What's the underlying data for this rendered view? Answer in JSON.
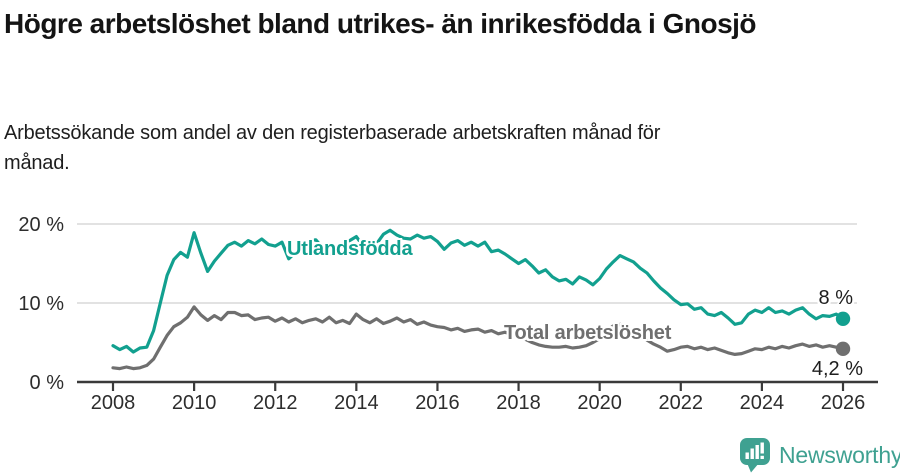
{
  "header": {
    "title": "Högre arbetslöshet bland utrikes- än inrikesfödda i Gnosjö",
    "subtitle": "Arbetssökande som andel av den registerbaserade arbetskraften månad för månad."
  },
  "colors": {
    "accent_teal": "#12A08F",
    "series_gray": "#6F6F6F",
    "grid": "#D9D9D9",
    "axis": "#3A3A3A",
    "text": "#1E1E1E",
    "brand_teal": "#3FA191"
  },
  "chart_data": {
    "type": "line",
    "unit": "%",
    "x_start": 2008,
    "x_step_months": 2,
    "x_ticks": [
      2008,
      2010,
      2012,
      2014,
      2016,
      2018,
      2020,
      2022,
      2024,
      2026
    ],
    "y_ticks": [
      {
        "value": 0,
        "label": "0 %"
      },
      {
        "value": 10,
        "label": "10 %"
      },
      {
        "value": 20,
        "label": "20 %"
      }
    ],
    "ylim": [
      0,
      21.5
    ],
    "xlim": [
      2008,
      2026.3
    ],
    "grid": true,
    "legend_position": "inline-labels",
    "series": [
      {
        "name": "Utlandsfödda",
        "color": "#12A08F",
        "end_label": "8 %",
        "end_value": 8.0,
        "values": [
          4.6,
          4.1,
          4.5,
          3.8,
          4.3,
          4.4,
          6.5,
          10.0,
          13.5,
          15.5,
          16.4,
          15.8,
          18.9,
          16.3,
          14.0,
          15.3,
          16.3,
          17.3,
          17.7,
          17.2,
          17.9,
          17.5,
          18.1,
          17.4,
          17.2,
          17.7,
          15.6,
          16.4,
          17.4,
          17.9,
          18.0,
          17.0,
          16.2,
          16.6,
          17.3,
          17.9,
          18.4,
          17.2,
          16.6,
          17.5,
          18.7,
          19.2,
          18.6,
          18.2,
          18.1,
          18.6,
          18.2,
          18.4,
          17.8,
          16.8,
          17.6,
          17.9,
          17.3,
          17.7,
          17.2,
          17.7,
          16.5,
          16.7,
          16.2,
          15.6,
          15.0,
          15.5,
          14.7,
          13.8,
          14.2,
          13.3,
          12.8,
          13.0,
          12.4,
          13.3,
          12.9,
          12.3,
          13.1,
          14.3,
          15.2,
          16.0,
          15.6,
          15.2,
          14.4,
          13.8,
          12.8,
          11.9,
          11.2,
          10.4,
          9.8,
          9.9,
          9.2,
          9.4,
          8.6,
          8.4,
          8.8,
          8.1,
          7.3,
          7.5,
          8.6,
          9.1,
          8.8,
          9.4,
          8.8,
          9.0,
          8.6,
          9.1,
          9.4,
          8.6,
          8.0,
          8.4,
          8.3,
          8.6,
          8.0
        ]
      },
      {
        "name": "Total arbetslöshet",
        "color": "#6F6F6F",
        "end_label": "4,2 %",
        "end_value": 4.2,
        "values": [
          1.8,
          1.7,
          1.9,
          1.7,
          1.8,
          2.1,
          2.9,
          4.4,
          5.9,
          7.0,
          7.5,
          8.2,
          9.5,
          8.5,
          7.8,
          8.4,
          7.9,
          8.8,
          8.8,
          8.4,
          8.5,
          7.9,
          8.1,
          8.2,
          7.7,
          8.1,
          7.6,
          8.0,
          7.5,
          7.8,
          8.0,
          7.6,
          8.2,
          7.5,
          7.8,
          7.4,
          8.6,
          7.9,
          7.5,
          8.0,
          7.4,
          7.7,
          8.1,
          7.6,
          7.9,
          7.3,
          7.6,
          7.2,
          7.0,
          6.9,
          6.6,
          6.8,
          6.4,
          6.6,
          6.7,
          6.3,
          6.5,
          6.1,
          6.3,
          6.0,
          5.8,
          5.4,
          5.0,
          4.7,
          4.5,
          4.4,
          4.4,
          4.5,
          4.3,
          4.4,
          4.6,
          5.0,
          5.5,
          6.4,
          7.1,
          7.3,
          6.8,
          6.3,
          5.9,
          5.3,
          4.8,
          4.4,
          3.9,
          4.1,
          4.4,
          4.5,
          4.2,
          4.4,
          4.1,
          4.3,
          4.0,
          3.7,
          3.5,
          3.6,
          3.9,
          4.2,
          4.1,
          4.4,
          4.2,
          4.5,
          4.3,
          4.6,
          4.8,
          4.5,
          4.7,
          4.4,
          4.6,
          4.4,
          4.2
        ]
      }
    ]
  },
  "footer": {
    "brand": "Newsworthy",
    "icon": "speech-bubble-bar-chart-icon"
  }
}
